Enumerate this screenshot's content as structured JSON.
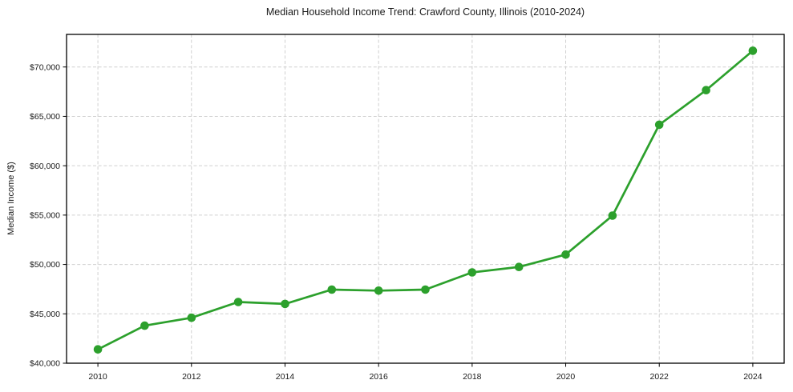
{
  "page": {
    "background": "#ffffff"
  },
  "colors": {
    "line": "#2ca02c",
    "marker": "#2ca02c",
    "grid": "#d0d0d0",
    "axis": "#000000",
    "text": "#1a1a1a"
  },
  "chart_data": {
    "type": "line",
    "title": "Median Household Income Trend: Crawford County, Illinois (2010-2024)",
    "xlabel": "",
    "ylabel": "Median Income ($)",
    "x": [
      2010,
      2011,
      2012,
      2013,
      2014,
      2015,
      2016,
      2017,
      2018,
      2019,
      2020,
      2021,
      2022,
      2023,
      2024
    ],
    "values": [
      41400,
      43800,
      44600,
      46200,
      46000,
      47450,
      47350,
      47450,
      49200,
      49750,
      51000,
      54950,
      64150,
      67650,
      71650
    ],
    "series_name": "Median Household Income",
    "xticks": [
      2010,
      2012,
      2014,
      2016,
      2018,
      2020,
      2022,
      2024
    ],
    "yticks": [
      40000,
      45000,
      50000,
      55000,
      60000,
      65000,
      70000
    ],
    "ytick_labels": [
      "$40,000",
      "$45,000",
      "$50,000",
      "$55,000",
      "$60,000",
      "$65,000",
      "$70,000"
    ],
    "xlim": [
      2009.33,
      2024.67
    ],
    "ylim": [
      40000,
      73300
    ],
    "grid": true,
    "grid_style": "dashed",
    "legend": "none",
    "marker": "circle"
  }
}
